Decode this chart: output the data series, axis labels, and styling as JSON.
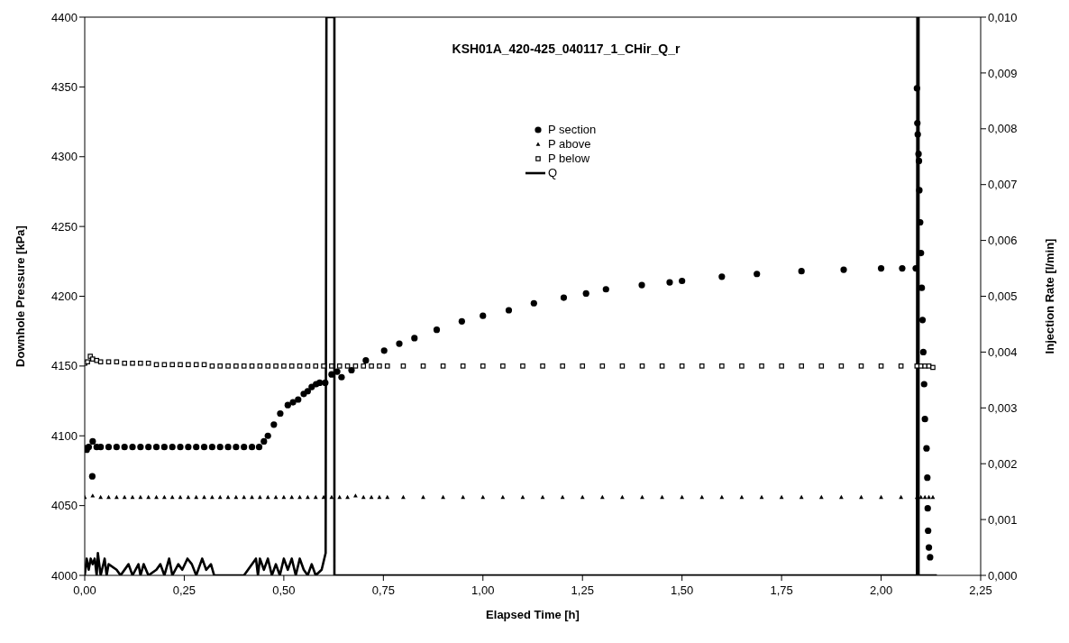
{
  "chart_data": {
    "type": "scatter",
    "title": "KSH01A_420-425_040117_1_CHir_Q_r",
    "xlabel": "Elapsed Time [h]",
    "ylabel": "Downhole Pressure [kPa]",
    "y2label": "Injection Rate [l/min]",
    "xlim": [
      0,
      2.25
    ],
    "xticks": [
      {
        "value": 0,
        "label": "0,00"
      },
      {
        "value": 0.25,
        "label": "0,25"
      },
      {
        "value": 0.5,
        "label": "0,50"
      },
      {
        "value": 0.75,
        "label": "0,75"
      },
      {
        "value": 1,
        "label": "1,00"
      },
      {
        "value": 1.25,
        "label": "1,25"
      },
      {
        "value": 1.5,
        "label": "1,50"
      },
      {
        "value": 1.75,
        "label": "1,75"
      },
      {
        "value": 2,
        "label": "2,00"
      },
      {
        "value": 2.25,
        "label": "2,25"
      }
    ],
    "ylim": [
      4000,
      4400
    ],
    "yticks": [
      4000,
      4050,
      4100,
      4150,
      4200,
      4250,
      4300,
      4350,
      4400
    ],
    "y2lim": [
      0,
      0.01
    ],
    "y2ticks": [
      {
        "value": 0,
        "label": "0,000"
      },
      {
        "value": 0.001,
        "label": "0,001"
      },
      {
        "value": 0.002,
        "label": "0,002"
      },
      {
        "value": 0.003,
        "label": "0,003"
      },
      {
        "value": 0.004,
        "label": "0,004"
      },
      {
        "value": 0.005,
        "label": "0,005"
      },
      {
        "value": 0.006,
        "label": "0,006"
      },
      {
        "value": 0.007,
        "label": "0,007"
      },
      {
        "value": 0.008,
        "label": "0,008"
      },
      {
        "value": 0.009,
        "label": "0,009"
      },
      {
        "value": 0.01,
        "label": "0,010"
      }
    ],
    "legend": "top",
    "series": [
      {
        "name": "P section",
        "marker": "circle",
        "color": "#000000",
        "x": [
          0,
          0.005,
          0.01,
          0.019,
          0.02,
          0.03,
          0.04,
          0.06,
          0.08,
          0.1,
          0.12,
          0.14,
          0.16,
          0.18,
          0.2,
          0.22,
          0.24,
          0.26,
          0.28,
          0.3,
          0.32,
          0.34,
          0.36,
          0.38,
          0.4,
          0.42,
          0.438,
          0.45,
          0.46,
          0.475,
          0.491,
          0.51,
          0.523,
          0.536,
          0.55,
          0.56,
          0.57,
          0.581,
          0.59,
          0.604,
          0.62,
          0.634,
          0.645,
          0.67,
          0.706,
          0.752,
          0.79,
          0.828,
          0.884,
          0.947,
          1,
          1.065,
          1.128,
          1.203,
          1.259,
          1.309,
          1.399,
          1.469,
          1.5,
          1.6,
          1.688,
          1.8,
          1.906,
          2,
          2.053,
          2.087,
          2.09,
          2.091,
          2.092,
          2.094,
          2.095,
          2.096,
          2.098,
          2.1,
          2.102,
          2.104,
          2.106,
          2.108,
          2.11,
          2.114,
          2.116,
          2.117,
          2.118,
          2.12,
          2.123
        ],
        "values": [
          4091,
          4090,
          4092,
          4071,
          4096,
          4092,
          4092,
          4092,
          4092,
          4092,
          4092,
          4092,
          4092,
          4092,
          4092,
          4092,
          4092,
          4092,
          4092,
          4092,
          4092,
          4092,
          4092,
          4092,
          4092,
          4092,
          4092,
          4096,
          4100,
          4108,
          4116,
          4122,
          4124,
          4126,
          4130,
          4132,
          4135,
          4137,
          4138,
          4138,
          4144,
          4146,
          4142,
          4147,
          4154,
          4161,
          4166,
          4170,
          4176,
          4182,
          4186,
          4190,
          4195,
          4199,
          4202,
          4205,
          4208,
          4210,
          4211,
          4214,
          4216,
          4218,
          4219,
          4220,
          4220,
          4220,
          4349,
          4324,
          4316,
          4302,
          4297,
          4276,
          4253,
          4231,
          4206,
          4183,
          4160,
          4137,
          4112,
          4091,
          4070,
          4048,
          4032,
          4020,
          4013
        ]
      },
      {
        "name": "P above",
        "marker": "triangle",
        "color": "#000000",
        "x": [
          0,
          0.02,
          0.04,
          0.06,
          0.08,
          0.1,
          0.12,
          0.14,
          0.16,
          0.18,
          0.2,
          0.22,
          0.24,
          0.26,
          0.28,
          0.3,
          0.32,
          0.34,
          0.36,
          0.38,
          0.4,
          0.42,
          0.44,
          0.46,
          0.48,
          0.5,
          0.52,
          0.54,
          0.56,
          0.58,
          0.6,
          0.62,
          0.64,
          0.66,
          0.68,
          0.7,
          0.72,
          0.74,
          0.76,
          0.8,
          0.85,
          0.9,
          0.95,
          1,
          1.05,
          1.1,
          1.15,
          1.2,
          1.25,
          1.3,
          1.35,
          1.4,
          1.45,
          1.5,
          1.55,
          1.6,
          1.65,
          1.7,
          1.75,
          1.8,
          1.85,
          1.9,
          1.95,
          2,
          2.05,
          2.09,
          2.1,
          2.11,
          2.12,
          2.13
        ],
        "values": [
          4056,
          4057,
          4056,
          4056,
          4056,
          4056,
          4056,
          4056,
          4056,
          4056,
          4056,
          4056,
          4056,
          4056,
          4056,
          4056,
          4056,
          4056,
          4056,
          4056,
          4056,
          4056,
          4056,
          4056,
          4056,
          4056,
          4056,
          4056,
          4056,
          4056,
          4056,
          4056,
          4056,
          4056,
          4057,
          4056,
          4056,
          4056,
          4056,
          4056,
          4056,
          4056,
          4056,
          4056,
          4056,
          4056,
          4056,
          4056,
          4056,
          4056,
          4056,
          4056,
          4056,
          4056,
          4056,
          4056,
          4056,
          4056,
          4056,
          4056,
          4056,
          4056,
          4056,
          4056,
          4056,
          4056,
          4056,
          4056,
          4056,
          4056
        ]
      },
      {
        "name": "P below",
        "marker": "square",
        "color": "#000000",
        "x": [
          0,
          0.007,
          0.014,
          0.02,
          0.03,
          0.04,
          0.06,
          0.08,
          0.1,
          0.12,
          0.14,
          0.16,
          0.18,
          0.2,
          0.22,
          0.24,
          0.26,
          0.28,
          0.3,
          0.32,
          0.34,
          0.36,
          0.38,
          0.4,
          0.42,
          0.44,
          0.46,
          0.48,
          0.5,
          0.52,
          0.54,
          0.56,
          0.58,
          0.6,
          0.62,
          0.64,
          0.66,
          0.68,
          0.7,
          0.72,
          0.74,
          0.76,
          0.8,
          0.85,
          0.9,
          0.95,
          1,
          1.05,
          1.1,
          1.15,
          1.2,
          1.25,
          1.3,
          1.35,
          1.4,
          1.45,
          1.5,
          1.55,
          1.6,
          1.65,
          1.7,
          1.75,
          1.8,
          1.85,
          1.9,
          1.95,
          2,
          2.05,
          2.09,
          2.1,
          2.11,
          2.12,
          2.13
        ],
        "values": [
          4152,
          4153,
          4157,
          4155,
          4154,
          4153,
          4153,
          4153,
          4152,
          4152,
          4152,
          4152,
          4151,
          4151,
          4151,
          4151,
          4151,
          4151,
          4151,
          4150,
          4150,
          4150,
          4150,
          4150,
          4150,
          4150,
          4150,
          4150,
          4150,
          4150,
          4150,
          4150,
          4150,
          4150,
          4150,
          4150,
          4150,
          4150,
          4150,
          4150,
          4150,
          4150,
          4150,
          4150,
          4150,
          4150,
          4150,
          4150,
          4150,
          4150,
          4150,
          4150,
          4150,
          4150,
          4150,
          4150,
          4150,
          4150,
          4150,
          4150,
          4150,
          4150,
          4150,
          4150,
          4150,
          4150,
          4150,
          4150,
          4150,
          4150,
          4150,
          4150,
          4149
        ]
      },
      {
        "name": "Q",
        "type": "line",
        "marker": "none",
        "axis": "y2",
        "color": "#000000",
        "x": [
          0,
          0.005,
          0.01,
          0.015,
          0.02,
          0.025,
          0.03,
          0.033,
          0.04,
          0.05,
          0.055,
          0.06,
          0.08,
          0.09,
          0.11,
          0.12,
          0.135,
          0.14,
          0.148,
          0.16,
          0.18,
          0.19,
          0.2,
          0.212,
          0.22,
          0.235,
          0.245,
          0.258,
          0.269,
          0.28,
          0.295,
          0.305,
          0.317,
          0.325,
          0.4,
          0.43,
          0.435,
          0.44,
          0.45,
          0.46,
          0.47,
          0.48,
          0.49,
          0.5,
          0.51,
          0.52,
          0.53,
          0.54,
          0.55,
          0.56,
          0.57,
          0.58,
          0.595,
          0.605,
          0.607,
          0.627,
          0.627,
          1,
          1.5,
          2,
          2.09,
          2.091,
          2.094,
          2.094,
          2.14
        ],
        "values": [
          0,
          0.0003,
          0.0001,
          0.0003,
          0.0002,
          0.0003,
          0,
          0.0004,
          0,
          0.0003,
          0,
          0.0002,
          0.0001,
          0,
          0.0002,
          0,
          0.0002,
          0,
          0.0002,
          0,
          0.0001,
          0.0002,
          0,
          0.0003,
          0,
          0.0002,
          0.0001,
          0.0003,
          0.0002,
          0,
          0.0003,
          0.0001,
          0.0002,
          0,
          0,
          0.0003,
          0,
          0.0003,
          0.0001,
          0.0003,
          0,
          0.0002,
          0,
          0.0003,
          0.0001,
          0.0003,
          0,
          0.0003,
          0.0001,
          0,
          0.0002,
          0,
          0.0001,
          0.0004,
          0.01,
          0.01,
          0,
          0,
          0,
          0,
          0,
          0.01,
          0.01,
          0,
          0
        ]
      }
    ]
  }
}
